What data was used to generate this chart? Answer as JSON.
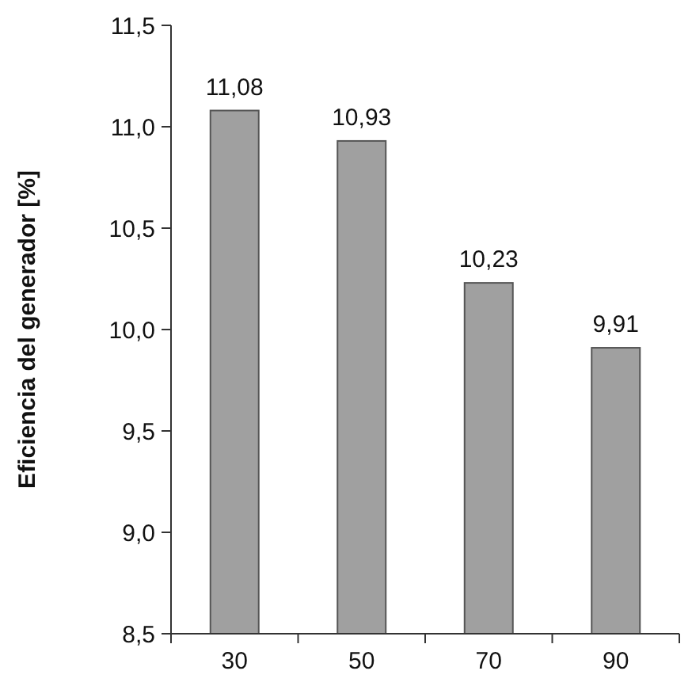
{
  "chart_data": {
    "type": "bar",
    "ylabel": "Eficiencia del generador [%]",
    "categories": [
      "30",
      "50",
      "70",
      "90"
    ],
    "values": [
      11.08,
      10.93,
      10.23,
      9.91
    ],
    "value_labels": [
      "11,08",
      "10,93",
      "10,23",
      "9,91"
    ],
    "color": "#a0a0a0",
    "ylim": [
      8.5,
      11.5
    ],
    "yticks": [
      {
        "value": 8.5,
        "label": "8,5"
      },
      {
        "value": 9,
        "label": "9,0"
      },
      {
        "value": 9.5,
        "label": "9,5"
      },
      {
        "value": 10,
        "label": "10,0"
      },
      {
        "value": 10.5,
        "label": "10,5"
      },
      {
        "value": 11,
        "label": "11,0"
      },
      {
        "value": 11.5,
        "label": "11,5"
      }
    ],
    "grid": false
  }
}
